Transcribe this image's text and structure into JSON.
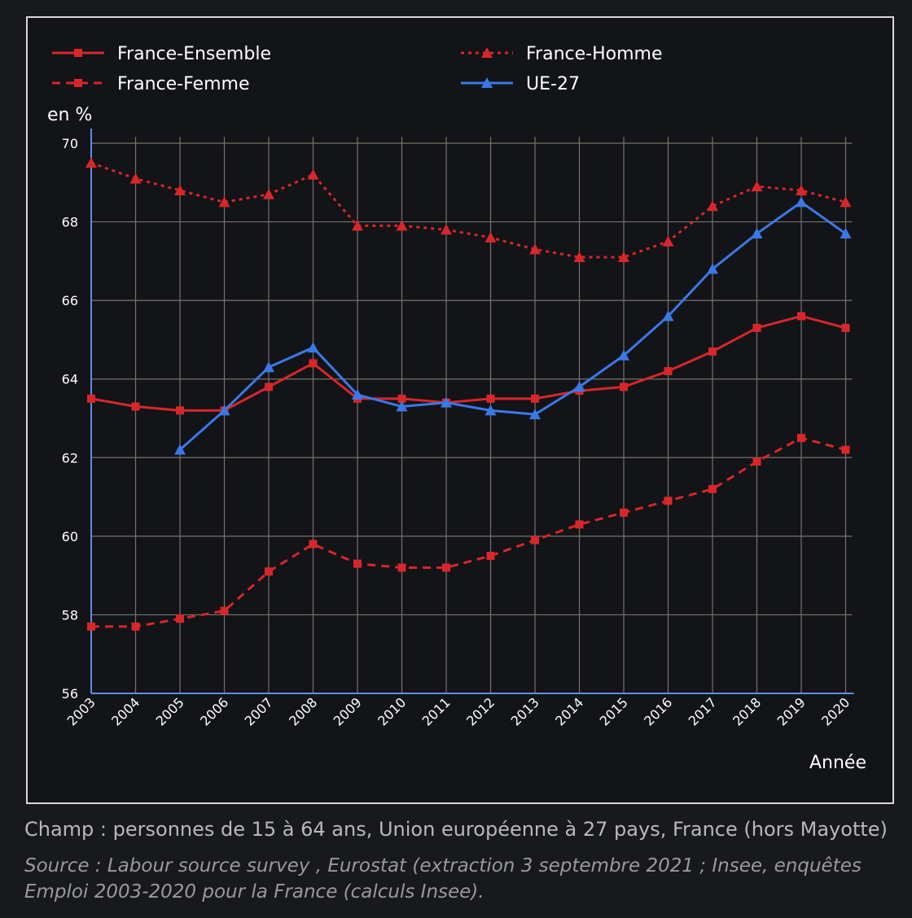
{
  "chart_data": {
    "type": "line",
    "title": "",
    "ylabel": "en %",
    "xlabel": "Année",
    "ylim": [
      56,
      70
    ],
    "yticks": [
      56,
      58,
      60,
      62,
      64,
      66,
      68,
      70
    ],
    "categories": [
      "2003",
      "2004",
      "2005",
      "2006",
      "2007",
      "2008",
      "2009",
      "2010",
      "2011",
      "2012",
      "2013",
      "2014",
      "2015",
      "2016",
      "2017",
      "2018",
      "2019",
      "2020"
    ],
    "series": [
      {
        "name": "France-Ensemble",
        "color": "#d9262a",
        "style": "solid",
        "marker": "square",
        "values": [
          63.5,
          63.3,
          63.2,
          63.2,
          63.8,
          64.4,
          63.5,
          63.5,
          63.4,
          63.5,
          63.5,
          63.7,
          63.8,
          64.2,
          64.7,
          65.3,
          65.6,
          65.3
        ]
      },
      {
        "name": "France-Homme",
        "color": "#d9262a",
        "style": "dotted",
        "marker": "triangle",
        "values": [
          69.5,
          69.1,
          68.8,
          68.5,
          68.7,
          69.2,
          67.9,
          67.9,
          67.8,
          67.6,
          67.3,
          67.1,
          67.1,
          67.5,
          68.4,
          68.9,
          68.8,
          68.5
        ]
      },
      {
        "name": "France-Femme",
        "color": "#d9262a",
        "style": "dashed",
        "marker": "square",
        "values": [
          57.7,
          57.7,
          57.9,
          58.1,
          59.1,
          59.8,
          59.3,
          59.2,
          59.2,
          59.5,
          59.9,
          60.3,
          60.6,
          60.9,
          61.2,
          61.9,
          62.5,
          62.2
        ]
      },
      {
        "name": "UE-27",
        "color": "#3b78e7",
        "style": "solid",
        "marker": "triangle",
        "values": [
          null,
          null,
          62.2,
          63.2,
          64.3,
          64.8,
          63.6,
          63.3,
          63.4,
          63.2,
          63.1,
          63.8,
          64.6,
          65.6,
          66.8,
          67.7,
          68.5,
          67.7
        ]
      }
    ],
    "legend_position": "top",
    "grid": true
  },
  "footer": {
    "champ": "Champ : personnes de 15 à 64 ans, Union européenne à 27 pays, France (hors Mayotte)",
    "source": "Source : Labour source survey , Eurostat (extraction 3 septembre 2021 ; Insee, enquêtes Emploi 2003-2020 pour la France (calculs Insee)."
  }
}
